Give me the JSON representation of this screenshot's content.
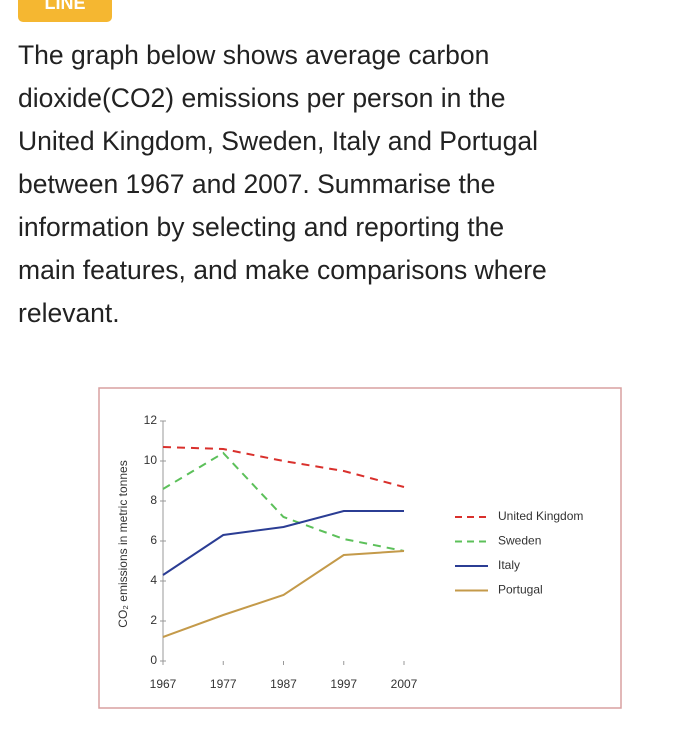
{
  "badge": "LINE",
  "prompt_lines": [
    "The graph below shows average carbon",
    "dioxide(CO2) emissions per person in the",
    "United Kingdom, Sweden, Italy and Portugal",
    "between 1967 and 2007. Summarise the",
    "information by selecting and reporting the",
    "main features, and make comparisons where",
    "relevant."
  ],
  "chart_data": {
    "type": "line",
    "y_label": "CO₂ emissions in metric tonnes",
    "x": [
      1967,
      1977,
      1987,
      1997,
      2007
    ],
    "xlim": [
      1967,
      2007
    ],
    "xticks": [
      1967,
      1977,
      1987,
      1997,
      2007
    ],
    "ylim": [
      0,
      12
    ],
    "yticks": [
      0,
      2,
      4,
      6,
      8,
      10,
      12
    ],
    "series": [
      {
        "name": "United Kingdom",
        "color": "#d9302c",
        "dashed": true,
        "values": [
          10.7,
          10.6,
          10.0,
          9.5,
          8.7
        ]
      },
      {
        "name": "Sweden",
        "color": "#5cc05a",
        "dashed": true,
        "values": [
          8.6,
          10.4,
          7.2,
          6.1,
          5.5
        ]
      },
      {
        "name": "Italy",
        "color": "#2b3d94",
        "dashed": false,
        "values": [
          4.3,
          6.3,
          6.7,
          7.5,
          7.5
        ]
      },
      {
        "name": "Portugal",
        "color": "#c49a4a",
        "dashed": false,
        "values": [
          1.2,
          2.3,
          3.3,
          5.3,
          5.5
        ]
      }
    ]
  }
}
